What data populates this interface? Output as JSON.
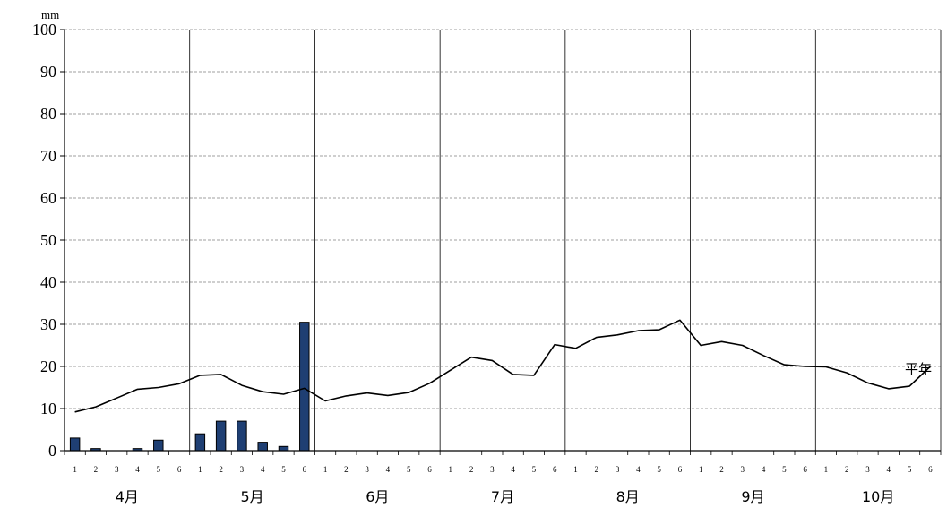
{
  "chart_data": {
    "type": "bar",
    "y_unit": "mm",
    "ylim": [
      0,
      100
    ],
    "y_ticks": [
      "0",
      "10",
      "20",
      "30",
      "40",
      "50",
      "60",
      "70",
      "80",
      "90",
      "100"
    ],
    "grid": "horizontal-dashed",
    "months": [
      "4月",
      "5月",
      "6月",
      "7月",
      "8月",
      "9月",
      "10月"
    ],
    "period_labels": [
      "1",
      "2",
      "3",
      "4",
      "5",
      "6"
    ],
    "colors": {
      "bar_fill": "#1f3f73",
      "bar_stroke": "#000000",
      "line": "#000000",
      "grid": "#808080"
    },
    "series": [
      {
        "type": "bar",
        "values": [
          3,
          0.5,
          0,
          0.5,
          2.5,
          0,
          4,
          7,
          7,
          2,
          1,
          30.5,
          0,
          0,
          0,
          0,
          0,
          0,
          0,
          0,
          0,
          0,
          0,
          0,
          0,
          0,
          0,
          0,
          0,
          0,
          0,
          0,
          0,
          0,
          0,
          0,
          0,
          0,
          0,
          0,
          0,
          0
        ]
      },
      {
        "type": "line",
        "name": "平年",
        "values": [
          9.2,
          10.4,
          12.5,
          14.6,
          15.0,
          15.9,
          17.9,
          18.1,
          15.5,
          14.0,
          13.4,
          14.8,
          11.8,
          13.0,
          13.7,
          13.1,
          13.8,
          16.0,
          19.1,
          22.2,
          21.4,
          18.1,
          17.9,
          25.2,
          24.3,
          26.9,
          27.5,
          28.5,
          28.7,
          31.0,
          25.0,
          25.9,
          25.0,
          22.6,
          20.4,
          20.0,
          19.9,
          18.5,
          16.1,
          14.7,
          15.3,
          20.0
        ]
      }
    ]
  }
}
